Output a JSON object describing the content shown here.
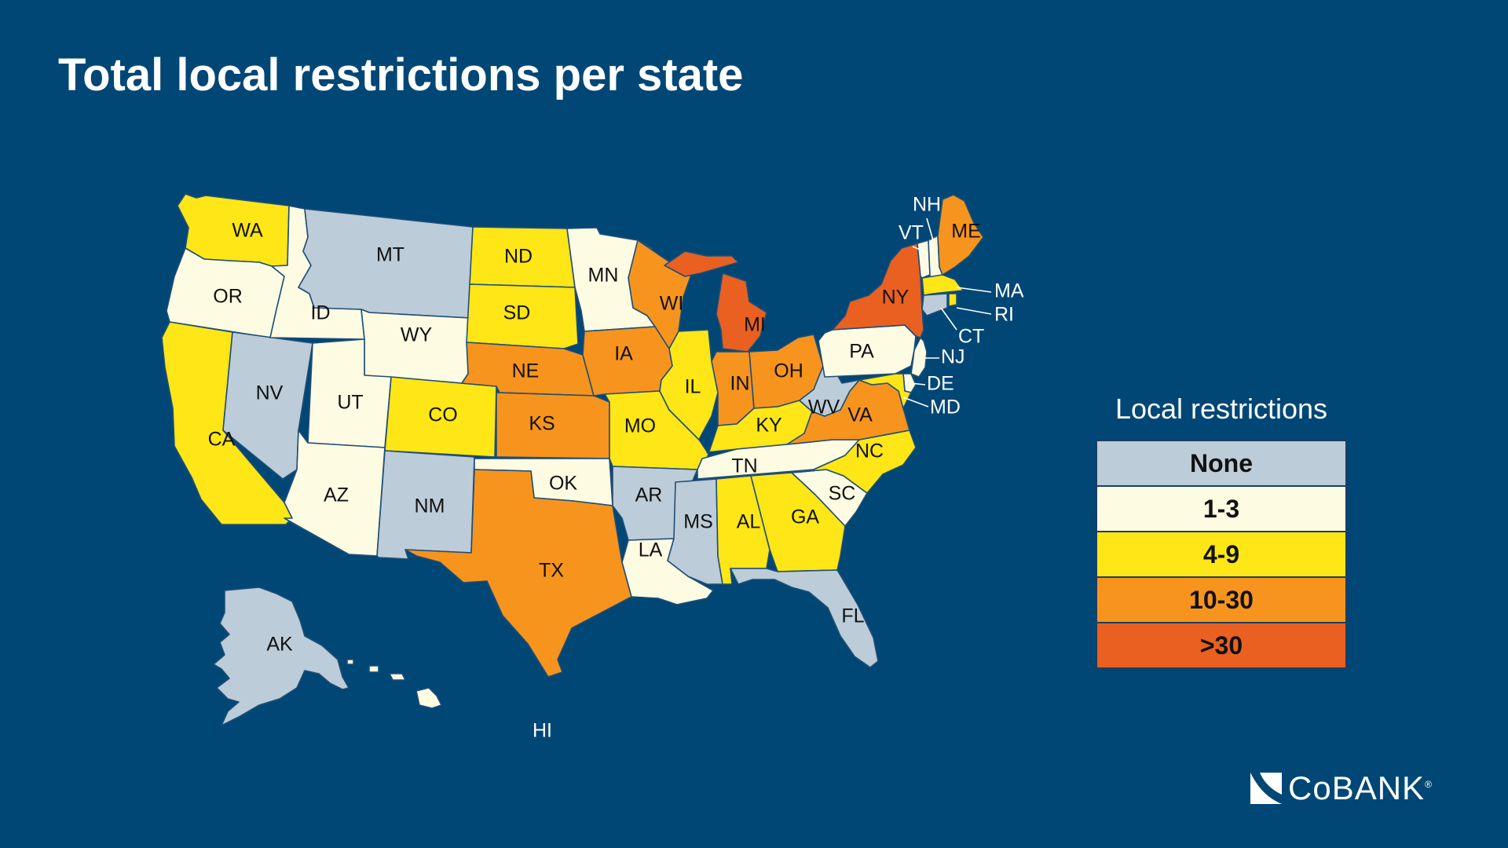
{
  "title": "Total local restrictions per state",
  "legend": {
    "title": "Local restrictions",
    "items": [
      {
        "label": "None",
        "color": "#bcccd8"
      },
      {
        "label": "1-3",
        "color": "#fdfbe2"
      },
      {
        "label": "4-9",
        "color": "#ffe616"
      },
      {
        "label": "10-30",
        "color": "#f7941d"
      },
      {
        "label": ">30",
        "color": "#ea6021"
      }
    ]
  },
  "states": [
    {
      "abbr": "WA",
      "category": "4-9"
    },
    {
      "abbr": "OR",
      "category": "1-3"
    },
    {
      "abbr": "CA",
      "category": "4-9"
    },
    {
      "abbr": "NV",
      "category": "None"
    },
    {
      "abbr": "ID",
      "category": "1-3"
    },
    {
      "abbr": "MT",
      "category": "None"
    },
    {
      "abbr": "WY",
      "category": "1-3"
    },
    {
      "abbr": "UT",
      "category": "1-3"
    },
    {
      "abbr": "AZ",
      "category": "1-3"
    },
    {
      "abbr": "CO",
      "category": "4-9"
    },
    {
      "abbr": "NM",
      "category": "None"
    },
    {
      "abbr": "ND",
      "category": "4-9"
    },
    {
      "abbr": "SD",
      "category": "4-9"
    },
    {
      "abbr": "NE",
      "category": "10-30"
    },
    {
      "abbr": "KS",
      "category": "10-30"
    },
    {
      "abbr": "OK",
      "category": "1-3"
    },
    {
      "abbr": "TX",
      "category": "10-30"
    },
    {
      "abbr": "MN",
      "category": "1-3"
    },
    {
      "abbr": "IA",
      "category": "10-30"
    },
    {
      "abbr": "MO",
      "category": "4-9"
    },
    {
      "abbr": "AR",
      "category": "None"
    },
    {
      "abbr": "LA",
      "category": "1-3"
    },
    {
      "abbr": "WI",
      "category": "10-30"
    },
    {
      "abbr": "IL",
      "category": "4-9"
    },
    {
      "abbr": "MI",
      "category": ">30"
    },
    {
      "abbr": "IN",
      "category": "10-30"
    },
    {
      "abbr": "OH",
      "category": "10-30"
    },
    {
      "abbr": "KY",
      "category": "4-9"
    },
    {
      "abbr": "TN",
      "category": "1-3"
    },
    {
      "abbr": "MS",
      "category": "None"
    },
    {
      "abbr": "AL",
      "category": "4-9"
    },
    {
      "abbr": "GA",
      "category": "4-9"
    },
    {
      "abbr": "FL",
      "category": "None"
    },
    {
      "abbr": "SC",
      "category": "1-3"
    },
    {
      "abbr": "NC",
      "category": "4-9"
    },
    {
      "abbr": "VA",
      "category": "10-30"
    },
    {
      "abbr": "WV",
      "category": "None"
    },
    {
      "abbr": "PA",
      "category": "1-3"
    },
    {
      "abbr": "NY",
      "category": ">30"
    },
    {
      "abbr": "VT",
      "category": "1-3"
    },
    {
      "abbr": "NH",
      "category": "1-3"
    },
    {
      "abbr": "ME",
      "category": "10-30"
    },
    {
      "abbr": "MA",
      "category": "4-9"
    },
    {
      "abbr": "RI",
      "category": "4-9"
    },
    {
      "abbr": "CT",
      "category": "None"
    },
    {
      "abbr": "NJ",
      "category": "1-3"
    },
    {
      "abbr": "DE",
      "category": "1-3"
    },
    {
      "abbr": "MD",
      "category": "4-9"
    },
    {
      "abbr": "AK",
      "category": "None"
    },
    {
      "abbr": "HI",
      "category": "1-3"
    }
  ],
  "brand": {
    "name": "CoBANK",
    "mark": "®"
  }
}
